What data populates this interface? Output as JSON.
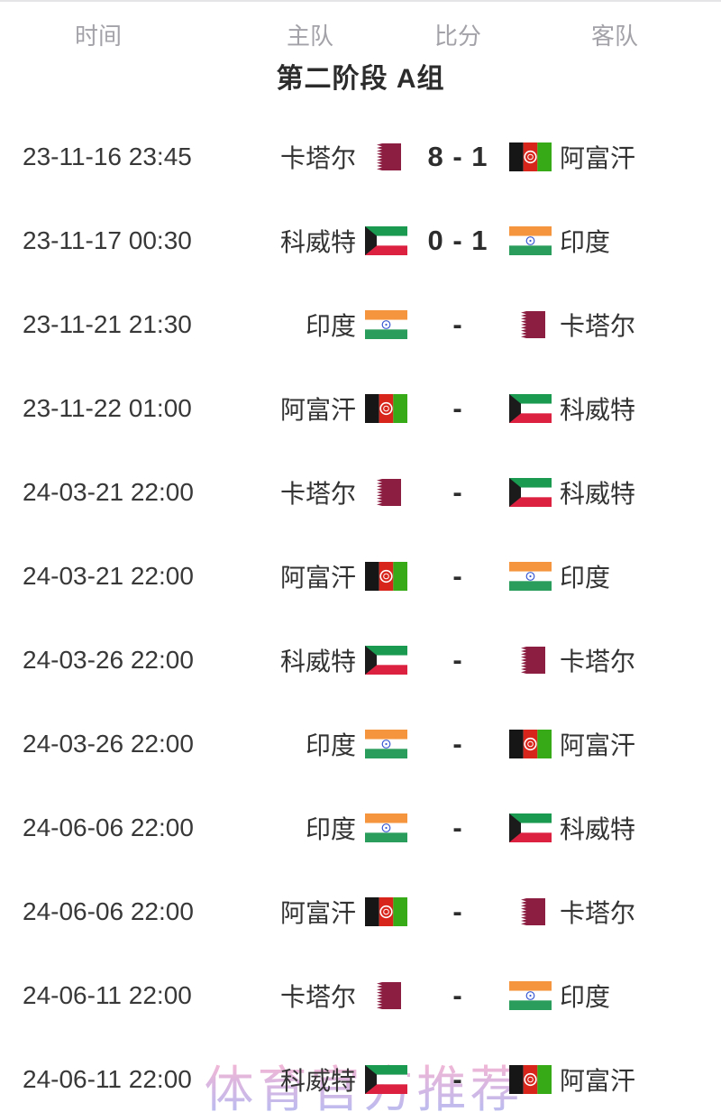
{
  "header": {
    "time": "时间",
    "home": "主队",
    "score": "比分",
    "away": "客队"
  },
  "group_title": "第二阶段 A组",
  "watermark": "体育官方推荐",
  "teams": {
    "qatar": "卡塔尔",
    "kuwait": "科威特",
    "india": "印度",
    "afghanistan": "阿富汗"
  },
  "flag_colors": {
    "qatar": {
      "maroon": "#8c1e42",
      "white": "#ffffff"
    },
    "kuwait": {
      "green": "#1a9950",
      "white": "#ffffff",
      "red": "#dc2040",
      "black": "#1b1b1b"
    },
    "india": {
      "saffron": "#f5953d",
      "white": "#ffffff",
      "green": "#2a9d5c",
      "navy": "#3b5bd3"
    },
    "afghanistan": {
      "black": "#161616",
      "red": "#d8251c",
      "green": "#36ab17",
      "white": "#ffffff"
    }
  },
  "matches": [
    {
      "time": "23-11-16 23:45",
      "home": "qatar",
      "score": "8 - 1",
      "away": "afghanistan"
    },
    {
      "time": "23-11-17 00:30",
      "home": "kuwait",
      "score": "0 - 1",
      "away": "india"
    },
    {
      "time": "23-11-21 21:30",
      "home": "india",
      "score": "-",
      "away": "qatar"
    },
    {
      "time": "23-11-22 01:00",
      "home": "afghanistan",
      "score": "-",
      "away": "kuwait"
    },
    {
      "time": "24-03-21 22:00",
      "home": "qatar",
      "score": "-",
      "away": "kuwait"
    },
    {
      "time": "24-03-21 22:00",
      "home": "afghanistan",
      "score": "-",
      "away": "india"
    },
    {
      "time": "24-03-26 22:00",
      "home": "kuwait",
      "score": "-",
      "away": "qatar"
    },
    {
      "time": "24-03-26 22:00",
      "home": "india",
      "score": "-",
      "away": "afghanistan"
    },
    {
      "time": "24-06-06 22:00",
      "home": "india",
      "score": "-",
      "away": "kuwait"
    },
    {
      "time": "24-06-06 22:00",
      "home": "afghanistan",
      "score": "-",
      "away": "qatar"
    },
    {
      "time": "24-06-11 22:00",
      "home": "qatar",
      "score": "-",
      "away": "india"
    },
    {
      "time": "24-06-11 22:00",
      "home": "kuwait",
      "score": "-",
      "away": "afghanistan"
    }
  ]
}
